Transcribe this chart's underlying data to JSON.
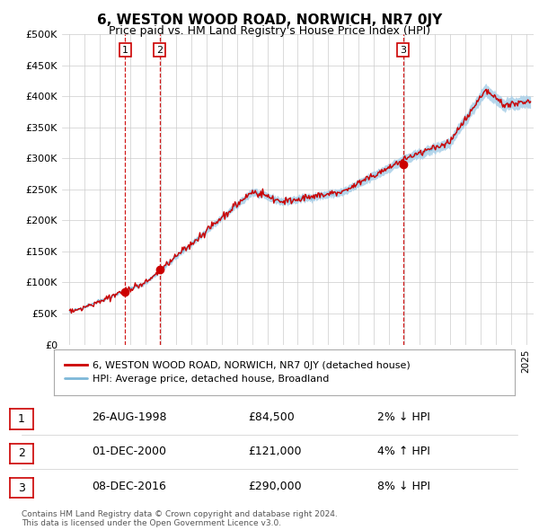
{
  "title": "6, WESTON WOOD ROAD, NORWICH, NR7 0JY",
  "subtitle": "Price paid vs. HM Land Registry's House Price Index (HPI)",
  "title_fontsize": 11,
  "subtitle_fontsize": 9,
  "ylabel_ticks": [
    "£0",
    "£50K",
    "£100K",
    "£150K",
    "£200K",
    "£250K",
    "£300K",
    "£350K",
    "£400K",
    "£450K",
    "£500K"
  ],
  "ytick_values": [
    0,
    50000,
    100000,
    150000,
    200000,
    250000,
    300000,
    350000,
    400000,
    450000,
    500000
  ],
  "ylim": [
    0,
    500000
  ],
  "xlim_start": 1994.5,
  "xlim_end": 2025.5,
  "hpi_color": "#a8cfe8",
  "hpi_line_color": "#7db8d8",
  "price_color": "#cc0000",
  "vline_color": "#cc0000",
  "sale_dates": [
    1998.65,
    2000.92,
    2016.92
  ],
  "sale_prices": [
    84500,
    121000,
    290000
  ],
  "sale_labels": [
    "1",
    "2",
    "3"
  ],
  "legend_label_price": "6, WESTON WOOD ROAD, NORWICH, NR7 0JY (detached house)",
  "legend_label_hpi": "HPI: Average price, detached house, Broadland",
  "table_rows": [
    [
      "1",
      "26-AUG-1998",
      "£84,500",
      "2% ↓ HPI"
    ],
    [
      "2",
      "01-DEC-2000",
      "£121,000",
      "4% ↑ HPI"
    ],
    [
      "3",
      "08-DEC-2016",
      "£290,000",
      "8% ↓ HPI"
    ]
  ],
  "footer": "Contains HM Land Registry data © Crown copyright and database right 2024.\nThis data is licensed under the Open Government Licence v3.0.",
  "background_color": "#ffffff",
  "grid_color": "#cccccc"
}
